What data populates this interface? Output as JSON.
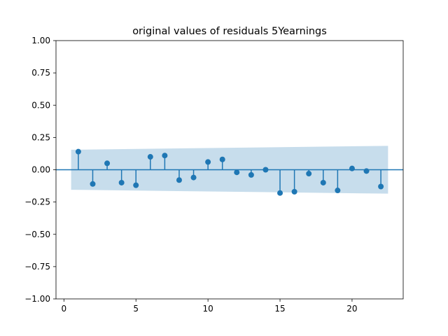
{
  "chart_data": {
    "type": "stem",
    "title": "original values of residuals 5Yearnings",
    "xlabel": "",
    "ylabel": "",
    "xlim": [
      -0.55,
      23.55
    ],
    "ylim": [
      -1.0,
      1.0
    ],
    "x_ticks": [
      0,
      5,
      10,
      15,
      20
    ],
    "x_tick_labels": [
      "0",
      "5",
      "10",
      "15",
      "20"
    ],
    "y_ticks": [
      1.0,
      0.75,
      0.5,
      0.25,
      0.0,
      -0.25,
      -0.5,
      -0.75,
      -1.0
    ],
    "y_tick_labels": [
      "1.00",
      "0.75",
      "0.50",
      "0.25",
      "0.00",
      "−0.25",
      "−0.50",
      "−0.75",
      "−1.00"
    ],
    "grid": false,
    "series": [
      {
        "x": [
          1,
          2,
          3,
          4,
          5,
          6,
          7,
          8,
          9,
          10,
          11,
          12,
          13,
          14,
          15,
          16,
          17,
          18,
          19,
          20,
          21,
          22
        ],
        "values": [
          0.14,
          -0.11,
          0.05,
          -0.1,
          -0.12,
          0.1,
          0.11,
          -0.08,
          -0.06,
          0.06,
          0.08,
          -0.02,
          -0.04,
          0.0,
          -0.18,
          -0.17,
          -0.03,
          -0.1,
          -0.16,
          0.01,
          -0.01,
          -0.13
        ]
      }
    ],
    "confidence_band": {
      "x": [
        0.5,
        22.5
      ],
      "upper": [
        0.155,
        0.185
      ],
      "lower": [
        -0.155,
        -0.185
      ]
    },
    "colors": {
      "series": "#1f77b4",
      "band": "#1f77b4",
      "axis": "#000000"
    }
  }
}
